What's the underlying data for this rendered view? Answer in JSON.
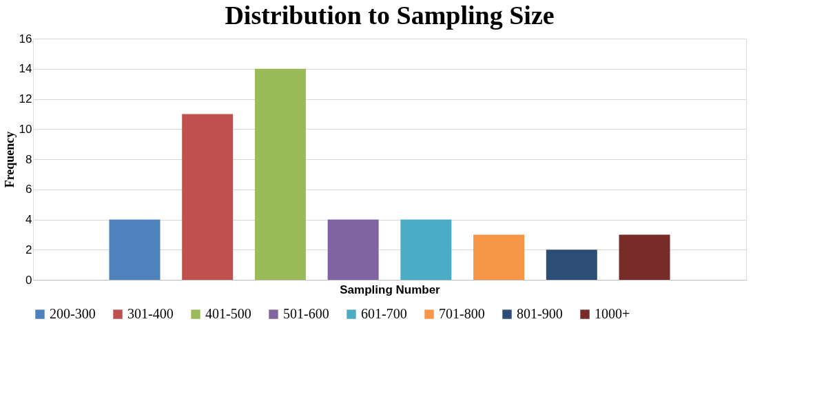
{
  "chart_data": {
    "type": "bar",
    "title": "Distribution to Sampling Size",
    "xlabel": "Sampling Number",
    "ylabel": "Frequency",
    "categories": [
      null
    ],
    "series": [
      {
        "name": "200-300",
        "color": "#4f81bd",
        "values": [
          4
        ]
      },
      {
        "name": "301-400",
        "color": "#c0504d",
        "values": [
          11
        ]
      },
      {
        "name": "401-500",
        "color": "#9bbb59",
        "values": [
          14
        ]
      },
      {
        "name": "501-600",
        "color": "#8064a2",
        "values": [
          4
        ]
      },
      {
        "name": "601-700",
        "color": "#4bacc6",
        "values": [
          4
        ]
      },
      {
        "name": "701-800",
        "color": "#f79646",
        "values": [
          3
        ]
      },
      {
        "name": "801-900",
        "color": "#2c4d75",
        "values": [
          2
        ]
      },
      {
        "name": "1000+",
        "color": "#772c2a",
        "values": [
          3
        ]
      }
    ],
    "ylim": [
      0,
      16
    ],
    "yticks": [
      0,
      2,
      4,
      6,
      8,
      10,
      12,
      14,
      16
    ],
    "grid": "y",
    "legend": "bottom"
  }
}
